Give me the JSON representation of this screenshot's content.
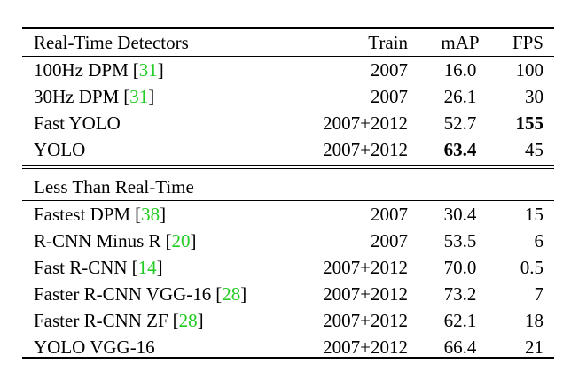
{
  "table": {
    "header": [
      "Real-Time Detectors",
      "Train",
      "mAP",
      "FPS"
    ],
    "groups": [
      {
        "rows": [
          {
            "method": "100Hz DPM",
            "cite": [
              "[",
              "31",
              "]"
            ],
            "train": "2007",
            "map": "16.0",
            "fps": "100"
          },
          {
            "method": "30Hz DPM",
            "cite": [
              "[",
              "31",
              "]"
            ],
            "train": "2007",
            "map": "26.1",
            "fps": "30"
          },
          {
            "method": "Fast YOLO",
            "train": "2007+2012",
            "map": "52.7",
            "fps": "155",
            "bold": [
              "fps"
            ]
          },
          {
            "method": "YOLO",
            "train": "2007+2012",
            "map": "63.4",
            "fps": "45",
            "bold": [
              "map"
            ]
          }
        ]
      },
      {
        "label": "Less Than Real-Time",
        "rows": [
          {
            "method": "Fastest DPM",
            "cite": [
              "[",
              "38",
              "]"
            ],
            "train": "2007",
            "map": "30.4",
            "fps": "15"
          },
          {
            "method": "R-CNN Minus R",
            "cite": [
              "[",
              "20",
              "]"
            ],
            "train": "2007",
            "map": "53.5",
            "fps": "6"
          },
          {
            "method": "Fast R-CNN",
            "cite": [
              "[",
              "14",
              "]"
            ],
            "train": "2007+2012",
            "map": "70.0",
            "fps": "0.5"
          },
          {
            "method": "Faster R-CNN VGG-16",
            "cite": [
              "[",
              "28",
              "]"
            ],
            "train": "2007+2012",
            "map": "73.2",
            "fps": "7"
          },
          {
            "method": "Faster R-CNN ZF",
            "cite": [
              "[",
              "28",
              "]"
            ],
            "train": "2007+2012",
            "map": "62.1",
            "fps": "18"
          },
          {
            "method": "YOLO VGG-16",
            "train": "2007+2012",
            "map": "66.4",
            "fps": "21"
          }
        ]
      }
    ]
  }
}
